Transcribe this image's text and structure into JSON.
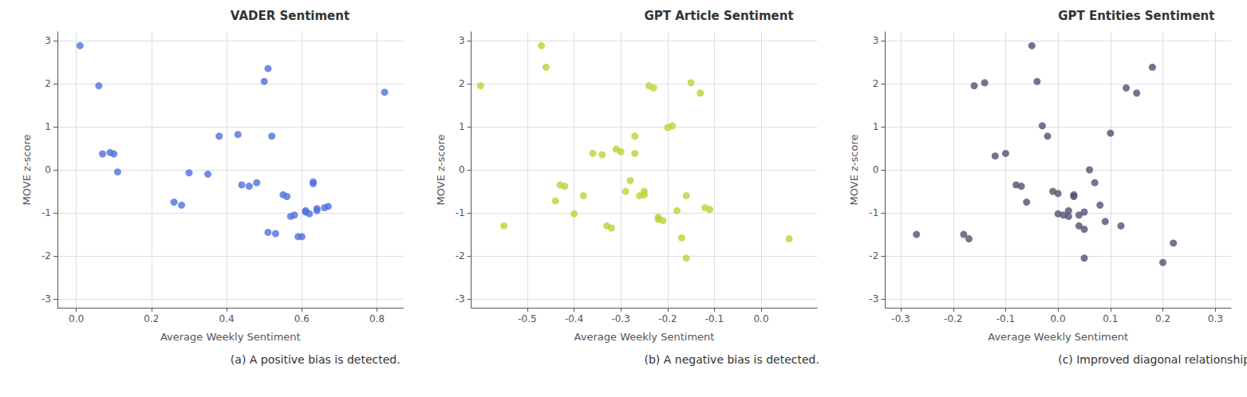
{
  "chart_data": [
    {
      "type": "scatter",
      "title": "VADER Sentiment",
      "xlabel": "Average Weekly Sentiment",
      "ylabel": "MOVE z-score",
      "caption": "(a) A positive bias is detected.",
      "xlim": [
        -0.05,
        0.87
      ],
      "ylim": [
        -3.2,
        3.2
      ],
      "xticks": [
        {
          "value": 0.0,
          "label": "0.0"
        },
        0.2,
        0.4,
        0.6,
        0.8
      ],
      "yticks": [
        -3,
        -2,
        -1,
        0,
        1,
        2,
        3
      ],
      "grid": true,
      "x": [
        0.01,
        0.06,
        0.07,
        0.09,
        0.1,
        0.11,
        0.26,
        0.28,
        0.3,
        0.35,
        0.38,
        0.43,
        0.44,
        0.46,
        0.48,
        0.5,
        0.51,
        0.51,
        0.52,
        0.53,
        0.55,
        0.56,
        0.57,
        0.58,
        0.59,
        0.6,
        0.61,
        0.61,
        0.62,
        0.63,
        0.63,
        0.64,
        0.64,
        0.66,
        0.67,
        0.82
      ],
      "y": [
        2.88,
        1.95,
        0.37,
        0.4,
        0.37,
        -0.05,
        -0.75,
        -0.82,
        -0.07,
        -0.1,
        0.78,
        0.82,
        -0.35,
        -0.38,
        -0.3,
        2.05,
        2.35,
        -1.45,
        0.78,
        -1.48,
        -0.58,
        -0.62,
        -1.08,
        -1.05,
        -1.55,
        -1.55,
        -0.95,
        -0.98,
        -1.02,
        -0.28,
        -0.32,
        -0.95,
        -0.9,
        -0.88,
        -0.85,
        1.8
      ]
    },
    {
      "type": "scatter",
      "title": "GPT Article Sentiment",
      "xlabel": "Average Weekly Sentiment",
      "ylabel": "MOVE z-score",
      "caption": "(b) A negative bias is detected.",
      "xlim": [
        -0.62,
        0.12
      ],
      "ylim": [
        -3.2,
        3.2
      ],
      "xticks": [
        -0.5,
        -0.4,
        -0.3,
        -0.2,
        -0.1,
        {
          "value": 0.0,
          "label": "0.0"
        }
      ],
      "yticks": [
        -3,
        -2,
        -1,
        0,
        1,
        2,
        3
      ],
      "grid": true,
      "x": [
        -0.6,
        -0.55,
        -0.47,
        -0.46,
        -0.44,
        -0.43,
        -0.42,
        -0.4,
        -0.38,
        -0.36,
        -0.34,
        -0.33,
        -0.32,
        -0.31,
        -0.3,
        -0.29,
        -0.28,
        -0.27,
        -0.27,
        -0.26,
        -0.25,
        -0.25,
        -0.24,
        -0.23,
        -0.22,
        -0.22,
        -0.21,
        -0.2,
        -0.19,
        -0.18,
        -0.17,
        -0.16,
        -0.16,
        -0.15,
        -0.13,
        -0.12,
        -0.11,
        0.06
      ],
      "y": [
        1.95,
        -1.3,
        2.88,
        2.38,
        -0.72,
        -0.35,
        -0.38,
        -1.02,
        -0.6,
        0.38,
        0.35,
        -1.3,
        -1.35,
        0.48,
        0.42,
        -0.5,
        -0.25,
        0.78,
        0.38,
        -0.6,
        -0.5,
        -0.58,
        1.95,
        1.9,
        -1.1,
        -1.15,
        -1.18,
        0.98,
        1.02,
        -0.95,
        -1.58,
        -2.05,
        -0.6,
        2.02,
        1.78,
        -0.88,
        -0.92,
        -1.6
      ]
    },
    {
      "type": "scatter",
      "title": "GPT Entities Sentiment",
      "xlabel": "Average Weekly Sentiment",
      "ylabel": "MOVE z-score",
      "caption": "(c) Improved diagonal relationship.",
      "xlim": [
        -0.33,
        0.33
      ],
      "ylim": [
        -3.2,
        3.2
      ],
      "xticks": [
        -0.3,
        -0.2,
        -0.1,
        {
          "value": 0.0,
          "label": "0.0"
        },
        0.1,
        0.2,
        0.3
      ],
      "yticks": [
        -3,
        -2,
        -1,
        0,
        1,
        2,
        3
      ],
      "grid": true,
      "x": [
        -0.27,
        -0.18,
        -0.17,
        -0.16,
        -0.14,
        -0.12,
        -0.1,
        -0.08,
        -0.07,
        -0.06,
        -0.05,
        -0.04,
        -0.03,
        -0.02,
        -0.01,
        0.0,
        0.0,
        0.01,
        0.02,
        0.02,
        0.03,
        0.03,
        0.04,
        0.04,
        0.05,
        0.05,
        0.05,
        0.06,
        0.07,
        0.08,
        0.09,
        0.1,
        0.12,
        0.13,
        0.15,
        0.18,
        0.2,
        0.22
      ],
      "y": [
        -1.5,
        -1.5,
        -1.6,
        1.95,
        2.02,
        0.32,
        0.38,
        -0.35,
        -0.38,
        -0.75,
        2.88,
        2.05,
        1.02,
        0.78,
        -0.5,
        -0.55,
        -1.02,
        -1.05,
        -1.08,
        -0.95,
        -0.58,
        -0.62,
        -1.3,
        -1.05,
        -1.38,
        -0.98,
        -2.05,
        0.0,
        -0.3,
        -0.82,
        -1.2,
        0.85,
        -1.3,
        1.9,
        1.78,
        2.38,
        -2.15,
        -1.7
      ]
    }
  ]
}
